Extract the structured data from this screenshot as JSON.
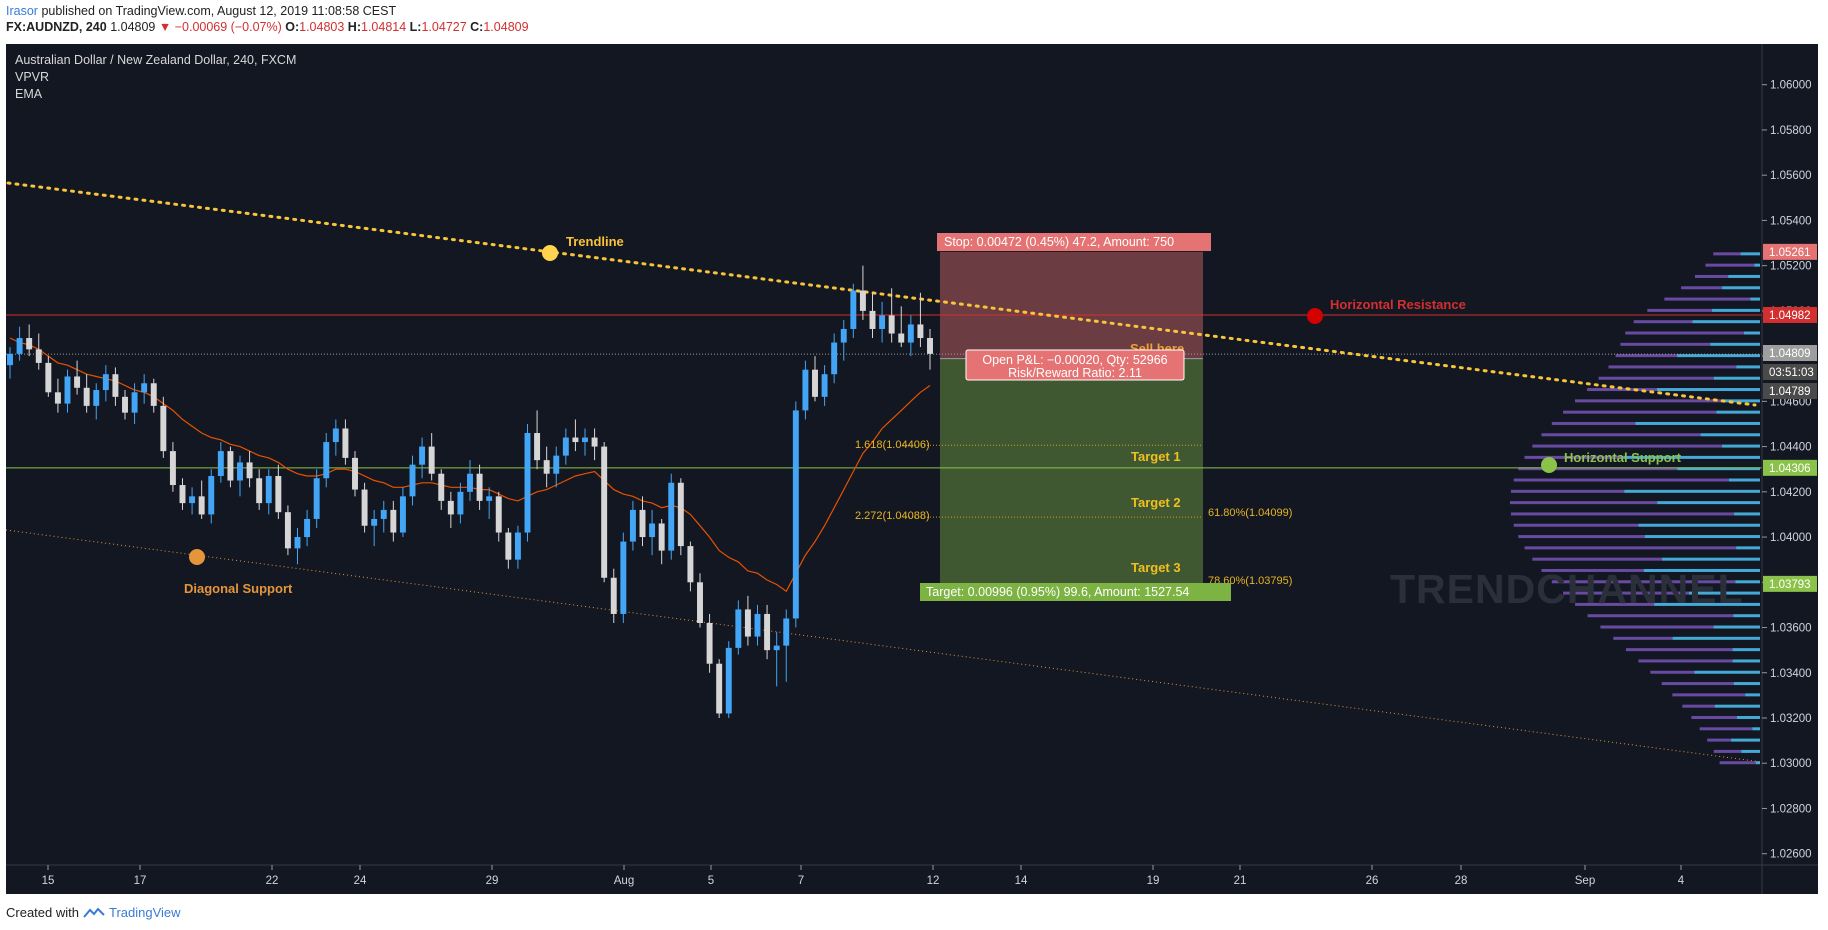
{
  "header": {
    "publisher": "Irasor",
    "published_text": "published on TradingView.com, August 12, 2019 11:08:58 CEST",
    "symbol": "FX:AUDNZD, 240",
    "last": "1.04809",
    "change": "▼ −0.00069 (−0.07%)",
    "open_label": "O:",
    "open": "1.04803",
    "high_label": "H:",
    "high": "1.04814",
    "low_label": "L:",
    "low": "1.04727",
    "close_label": "C:",
    "close": "1.04809"
  },
  "legend": {
    "title": "Australian Dollar / New Zealand Dollar, 240, FXCM",
    "indicator1": "VPVR",
    "indicator2": "EMA"
  },
  "footer": {
    "created_with": "Created with",
    "brand": "TradingView"
  },
  "watermark": "TRENDCHANNEL",
  "colors": {
    "background": "#131722",
    "bull": "#42a5f5",
    "bear": "#d6d6d6",
    "ema": "#e65100",
    "trendline": "#f9c33a",
    "resistance": "#d32f2f",
    "support": "#8bc34a",
    "diagonal": "#e5953a",
    "stop_zone": "#e57373",
    "target_zone": "#8bc34a",
    "vp_up": "#4fc3f7",
    "vp_down": "#7e57c2"
  },
  "chart_data": {
    "type": "candlestick",
    "symbol": "AUDNZD",
    "timeframe": "240",
    "y_axis": {
      "min": 1.0255,
      "max": 1.0618,
      "ticks": [
        "1.06000",
        "1.05800",
        "1.05600",
        "1.05400",
        "1.05200",
        "1.05000",
        "1.04800",
        "1.04600",
        "1.04400",
        "1.04200",
        "1.04000",
        "1.03800",
        "1.03600",
        "1.03400",
        "1.03200",
        "1.03000",
        "1.02800",
        "1.02600"
      ]
    },
    "x_axis": {
      "ticks": [
        "15",
        "17",
        "22",
        "24",
        "29",
        "Aug",
        "5",
        "7",
        "12",
        "14",
        "19",
        "21",
        "26",
        "28",
        "Sep",
        "4"
      ]
    },
    "price_labels": [
      {
        "text": "1.05261",
        "value": 1.05261,
        "color": "#e57373"
      },
      {
        "text": "1.04982",
        "value": 1.04982,
        "color": "#d32f2f"
      },
      {
        "text": "1.04809",
        "value": 1.04809,
        "color": "#9e9e9e"
      },
      {
        "text": "03:51:03",
        "value": 1.04722,
        "color": "#4a4a4a"
      },
      {
        "text": "1.04789",
        "value": 1.04789,
        "color": "#4a4a4a"
      },
      {
        "text": "1.04306",
        "value": 1.04306,
        "color": "#8bc34a"
      },
      {
        "text": "1.03793",
        "value": 1.03793,
        "color": "#8bc34a"
      }
    ],
    "trade": {
      "stop_label": "Stop: 0.00472 (0.45%) 47.2, Amount: 750",
      "target_label": "Target: 0.00996 (0.95%) 99.6, Amount: 1527.54",
      "pnl_label": "Open P&L: −0.00020, Qty: 52966",
      "rr_label": "Risk/Reward Ratio: 2.11",
      "entry": 1.04789,
      "stop": 1.05261,
      "target": 1.03793
    },
    "annotations": {
      "trendline": "Trendline",
      "horizontal_resistance": "Horizontal Resistance",
      "horizontal_support": "Horizontal Support",
      "diagonal_support": "Diagonal Support",
      "sell_here": "Sell here",
      "target1": "Target 1",
      "target2": "Target 2",
      "target3": "Target 3",
      "fib1618": "1.618(1.04406)",
      "fib2272": "2.272(1.04088)",
      "fib618": "61.80%(1.04099)",
      "fib786": "78.60%(1.03795)"
    },
    "levels": {
      "resistance": 1.04982,
      "support": 1.04306,
      "fib1618": 1.04406,
      "fib2272": 1.04088
    },
    "candles": [
      [
        1.0476,
        1.0484,
        1.047,
        1.0481
      ],
      [
        1.0481,
        1.0493,
        1.0478,
        1.0488
      ],
      [
        1.0488,
        1.0494,
        1.048,
        1.0483
      ],
      [
        1.0483,
        1.049,
        1.0474,
        1.0477
      ],
      [
        1.0477,
        1.048,
        1.0462,
        1.0464
      ],
      [
        1.0464,
        1.047,
        1.0455,
        1.0459
      ],
      [
        1.0459,
        1.0474,
        1.0455,
        1.0471
      ],
      [
        1.0471,
        1.0478,
        1.0463,
        1.0466
      ],
      [
        1.0466,
        1.0472,
        1.0455,
        1.0458
      ],
      [
        1.0458,
        1.0468,
        1.0452,
        1.0465
      ],
      [
        1.0465,
        1.0476,
        1.046,
        1.0472
      ],
      [
        1.0472,
        1.0475,
        1.0458,
        1.0462
      ],
      [
        1.0462,
        1.0465,
        1.0452,
        1.0455
      ],
      [
        1.0455,
        1.0468,
        1.045,
        1.0464
      ],
      [
        1.0464,
        1.0472,
        1.0459,
        1.0468
      ],
      [
        1.0468,
        1.047,
        1.0455,
        1.0458
      ],
      [
        1.0458,
        1.0462,
        1.0435,
        1.0438
      ],
      [
        1.0438,
        1.0442,
        1.042,
        1.0423
      ],
      [
        1.0423,
        1.0426,
        1.0412,
        1.0415
      ],
      [
        1.0415,
        1.0422,
        1.041,
        1.0418
      ],
      [
        1.0418,
        1.0425,
        1.0408,
        1.041
      ],
      [
        1.041,
        1.043,
        1.0406,
        1.0427
      ],
      [
        1.0427,
        1.0442,
        1.0424,
        1.0438
      ],
      [
        1.0438,
        1.044,
        1.0422,
        1.0425
      ],
      [
        1.0425,
        1.0436,
        1.0418,
        1.0433
      ],
      [
        1.0433,
        1.0438,
        1.0422,
        1.0426
      ],
      [
        1.0426,
        1.043,
        1.0412,
        1.0415
      ],
      [
        1.0415,
        1.043,
        1.041,
        1.0427
      ],
      [
        1.0427,
        1.0432,
        1.0408,
        1.0411
      ],
      [
        1.0411,
        1.0414,
        1.0392,
        1.0395
      ],
      [
        1.0395,
        1.0404,
        1.0388,
        1.04
      ],
      [
        1.04,
        1.0412,
        1.0396,
        1.0408
      ],
      [
        1.0408,
        1.043,
        1.0404,
        1.0426
      ],
      [
        1.0426,
        1.0446,
        1.0422,
        1.0442
      ],
      [
        1.0442,
        1.0452,
        1.0436,
        1.0448
      ],
      [
        1.0448,
        1.0452,
        1.0432,
        1.0435
      ],
      [
        1.0435,
        1.0438,
        1.0418,
        1.0421
      ],
      [
        1.0421,
        1.0424,
        1.0402,
        1.0405
      ],
      [
        1.0405,
        1.0412,
        1.0396,
        1.0408
      ],
      [
        1.0408,
        1.0416,
        1.0402,
        1.0412
      ],
      [
        1.0412,
        1.0416,
        1.0398,
        1.0402
      ],
      [
        1.0402,
        1.0422,
        1.04,
        1.0418
      ],
      [
        1.0418,
        1.0436,
        1.0414,
        1.0432
      ],
      [
        1.0432,
        1.0444,
        1.0426,
        1.044
      ],
      [
        1.044,
        1.0446,
        1.0425,
        1.0428
      ],
      [
        1.0428,
        1.043,
        1.0412,
        1.0416
      ],
      [
        1.0416,
        1.042,
        1.0404,
        1.041
      ],
      [
        1.041,
        1.0424,
        1.0406,
        1.042
      ],
      [
        1.042,
        1.0434,
        1.0416,
        1.0428
      ],
      [
        1.0428,
        1.0432,
        1.0412,
        1.0416
      ],
      [
        1.0416,
        1.0422,
        1.0408,
        1.0418
      ],
      [
        1.0418,
        1.042,
        1.0398,
        1.0402
      ],
      [
        1.0402,
        1.0404,
        1.0386,
        1.039
      ],
      [
        1.039,
        1.0405,
        1.0386,
        1.0402
      ],
      [
        1.0402,
        1.045,
        1.0398,
        1.0446
      ],
      [
        1.0446,
        1.0456,
        1.043,
        1.0434
      ],
      [
        1.0434,
        1.044,
        1.0422,
        1.0428
      ],
      [
        1.0428,
        1.044,
        1.0422,
        1.0436
      ],
      [
        1.0436,
        1.0448,
        1.0432,
        1.0444
      ],
      [
        1.0444,
        1.0452,
        1.0438,
        1.0442
      ],
      [
        1.0442,
        1.0448,
        1.0436,
        1.0444
      ],
      [
        1.0444,
        1.0448,
        1.0434,
        1.044
      ],
      [
        1.044,
        1.0442,
        1.038,
        1.0382
      ],
      [
        1.0382,
        1.0386,
        1.0362,
        1.0366
      ],
      [
        1.0366,
        1.0402,
        1.0362,
        1.0398
      ],
      [
        1.0398,
        1.0416,
        1.0394,
        1.0412
      ],
      [
        1.0412,
        1.0418,
        1.0396,
        1.04
      ],
      [
        1.04,
        1.0412,
        1.0392,
        1.0406
      ],
      [
        1.0406,
        1.0408,
        1.0388,
        1.0394
      ],
      [
        1.0394,
        1.0428,
        1.039,
        1.0424
      ],
      [
        1.0424,
        1.0426,
        1.0392,
        1.0396
      ],
      [
        1.0396,
        1.0398,
        1.0376,
        1.038
      ],
      [
        1.038,
        1.0384,
        1.036,
        1.0362
      ],
      [
        1.0362,
        1.0366,
        1.034,
        1.0344
      ],
      [
        1.0344,
        1.0346,
        1.032,
        1.0322
      ],
      [
        1.0322,
        1.0354,
        1.032,
        1.0351
      ],
      [
        1.0351,
        1.0372,
        1.0348,
        1.0368
      ],
      [
        1.0368,
        1.0374,
        1.0352,
        1.0356
      ],
      [
        1.0356,
        1.037,
        1.0352,
        1.0366
      ],
      [
        1.0366,
        1.037,
        1.0346,
        1.035
      ],
      [
        1.035,
        1.0358,
        1.0334,
        1.0352
      ],
      [
        1.0352,
        1.0368,
        1.0336,
        1.0364
      ],
      [
        1.0364,
        1.046,
        1.036,
        1.0456
      ],
      [
        1.0456,
        1.0478,
        1.0452,
        1.0474
      ],
      [
        1.0474,
        1.048,
        1.046,
        1.0462
      ],
      [
        1.0462,
        1.0476,
        1.0458,
        1.0472
      ],
      [
        1.0472,
        1.049,
        1.0468,
        1.0486
      ],
      [
        1.0486,
        1.0496,
        1.0478,
        1.0492
      ],
      [
        1.0492,
        1.0512,
        1.0488,
        1.0509
      ],
      [
        1.0509,
        1.052,
        1.0496,
        1.05
      ],
      [
        1.05,
        1.0508,
        1.0488,
        1.0492
      ],
      [
        1.0492,
        1.0504,
        1.0486,
        1.0498
      ],
      [
        1.0498,
        1.051,
        1.0486,
        1.049
      ],
      [
        1.049,
        1.0502,
        1.0484,
        1.0486
      ],
      [
        1.0486,
        1.0498,
        1.048,
        1.0494
      ],
      [
        1.0494,
        1.0508,
        1.0484,
        1.0488
      ],
      [
        1.0488,
        1.0492,
        1.0474,
        1.0481
      ]
    ],
    "ema": [
      1.0488,
      1.0486,
      1.0485,
      1.0483,
      1.048,
      1.0477,
      1.0476,
      1.0474,
      1.0472,
      1.0471,
      1.047,
      1.0469,
      1.0467,
      1.0465,
      1.0464,
      1.0462,
      1.0459,
      1.0456,
      1.0452,
      1.0449,
      1.0446,
      1.0444,
      1.0443,
      1.0441,
      1.044,
      1.0438,
      1.0436,
      1.0435,
      1.0433,
      1.043,
      1.0428,
      1.0427,
      1.0427,
      1.0428,
      1.043,
      1.043,
      1.0429,
      1.0427,
      1.0425,
      1.0424,
      1.0422,
      1.0422,
      1.0423,
      1.0424,
      1.0424,
      1.0423,
      1.0422,
      1.0422,
      1.0422,
      1.0421,
      1.0421,
      1.0419,
      1.0417,
      1.0416,
      1.0418,
      1.042,
      1.0421,
      1.0423,
      1.0425,
      1.0427,
      1.0428,
      1.0429,
      1.0425,
      1.0421,
      1.0419,
      1.0418,
      1.0416,
      1.0415,
      1.0413,
      1.0414,
      1.0413,
      1.041,
      1.0405,
      1.04,
      1.0394,
      1.0391,
      1.0389,
      1.0385,
      1.0384,
      1.0381,
      1.0379,
      1.0376,
      1.0384,
      1.0392,
      1.0398,
      1.0405,
      1.0413,
      1.0421,
      1.0429,
      1.0437,
      1.0442,
      1.0448,
      1.0452,
      1.0456,
      1.046,
      1.0464,
      1.0467
    ]
  }
}
